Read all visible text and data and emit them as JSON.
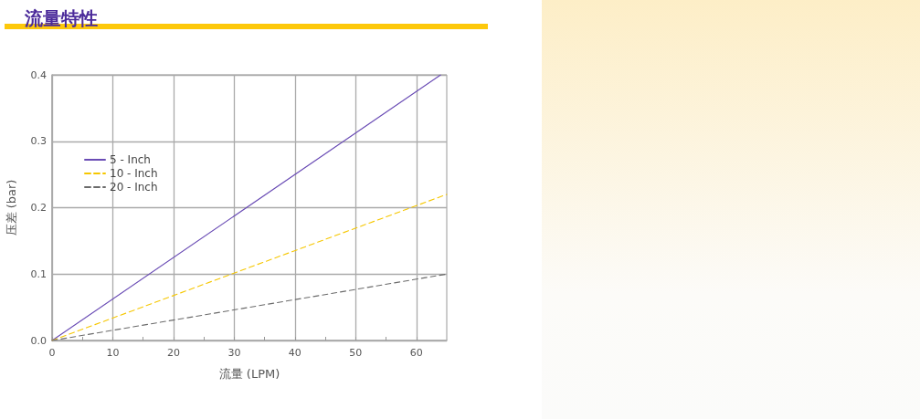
{
  "chart_data": {
    "type": "line",
    "title": "流量特性",
    "xlabel": "流量 (LPM)",
    "ylabel": "压差 (bar)",
    "series": [
      {
        "name": "5 - Inch",
        "color": "#6a4cb5",
        "x": [
          0,
          64
        ],
        "values": [
          0,
          0.4
        ],
        "line_style": "solid"
      },
      {
        "name": "10 - Inch",
        "color": "#f6c700",
        "x": [
          0,
          65
        ],
        "values": [
          0,
          0.22
        ],
        "line_style": "dashed"
      },
      {
        "name": "20 - Inch",
        "color": "#6b6b6b",
        "x": [
          0,
          65
        ],
        "values": [
          0,
          0.1
        ],
        "line_style": "dashed"
      }
    ],
    "xlim": [
      0,
      65
    ],
    "xticks": [
      0,
      {
        "value": 5,
        "label": null
      },
      10,
      {
        "value": 15,
        "label": null
      },
      20,
      {
        "value": 25,
        "label": null
      },
      30,
      {
        "value": 35,
        "label": null
      },
      40,
      {
        "value": 45,
        "label": null
      },
      50,
      {
        "value": 55,
        "label": null
      },
      60
    ],
    "ylim": [
      0,
      0.4
    ],
    "yticks": [
      {
        "value": 0,
        "label": "0.0"
      },
      0.1,
      0.2,
      0.3,
      0.4
    ],
    "grid": true,
    "legend": "top left",
    "marker": "none"
  }
}
